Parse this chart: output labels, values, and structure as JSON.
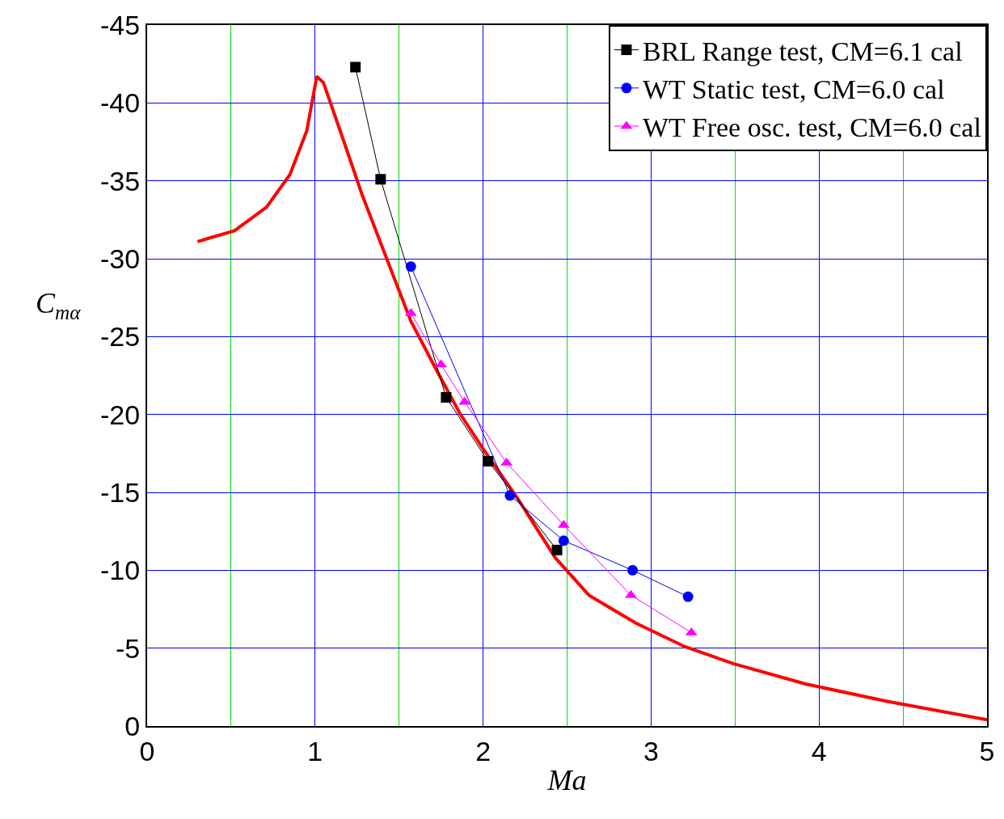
{
  "chart_data": {
    "type": "line",
    "xlabel": "Ma",
    "ylabel": "C$_{mα}$",
    "xlim": [
      0,
      5
    ],
    "xticks": [
      0,
      {
        "value": 0.5,
        "label": null
      },
      1,
      {
        "value": 1.5,
        "label": null
      },
      2,
      {
        "value": 2.5,
        "label": null
      },
      3,
      {
        "value": 3.5,
        "label": null
      },
      4,
      {
        "value": 4.5,
        "label": null
      },
      5
    ],
    "ylim": [
      0,
      -45
    ],
    "yticks": [
      0,
      -5,
      -10,
      -15,
      -20,
      -25,
      -30,
      -35,
      -40,
      -45
    ],
    "grid": true,
    "legend": "top right",
    "series": [
      {
        "color": "#ff0000",
        "marker": "none",
        "x": [
          0.3,
          0.52,
          0.71,
          0.85,
          0.95,
          1.01,
          1.05,
          1.14,
          1.28,
          1.43,
          1.57,
          1.72,
          1.86,
          2.0,
          2.2,
          2.43,
          2.63,
          2.91,
          3.2,
          3.49,
          3.92,
          4.4,
          5.0
        ],
        "values": [
          -31.1,
          -31.8,
          -33.3,
          -35.4,
          -38.2,
          -41.7,
          -41.3,
          -38.5,
          -34.1,
          -29.9,
          -26.0,
          -22.9,
          -20.1,
          -17.8,
          -14.7,
          -10.8,
          -8.4,
          -6.6,
          -5.1,
          -4.0,
          -2.7,
          -1.6,
          -0.4
        ]
      },
      {
        "name": "BRL Range test, CM=6.1 cal",
        "color": "#000000",
        "marker": "square",
        "x": [
          1.24,
          1.39,
          1.78,
          2.03,
          2.44
        ],
        "values": [
          -42.3,
          -35.1,
          -21.1,
          -17.0,
          -11.3
        ]
      },
      {
        "name": "WT Static test, CM=6.0 cal",
        "color": "#0000ff",
        "marker": "circle",
        "x": [
          1.57,
          2.16,
          2.48,
          2.89,
          3.22
        ],
        "values": [
          -29.5,
          -14.8,
          -11.9,
          -10.0,
          -8.3
        ]
      },
      {
        "name": "WT Free osc. test, CM=6.0 cal",
        "color": "#ff00ff",
        "marker": "triangle",
        "x": [
          1.57,
          1.75,
          1.89,
          2.14,
          2.48,
          2.88,
          3.24
        ],
        "values": [
          -26.5,
          -23.2,
          -20.8,
          -16.9,
          -12.9,
          -8.4,
          -6.0
        ]
      }
    ]
  }
}
